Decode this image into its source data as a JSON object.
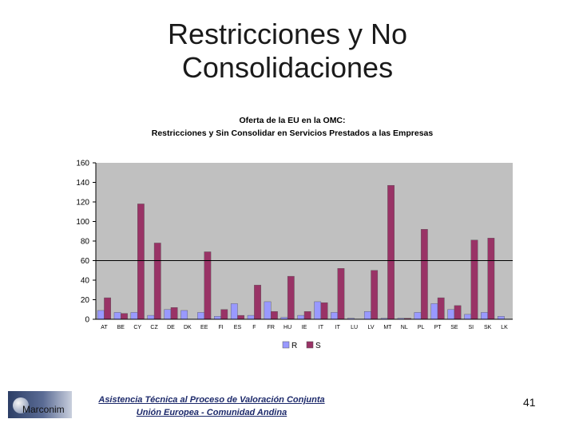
{
  "slide": {
    "title_line1": "Restricciones y No",
    "title_line2": "Consolidaciones",
    "footer_org": "Marconim",
    "footer_line1": "Asistencia Técnica al Proceso de Valoración Conjunta",
    "footer_line2": "Unión Europea - Comunidad Andina",
    "page_number": "41"
  },
  "chart_data": {
    "type": "bar",
    "title": "Oferta de la EU en la OMC:",
    "subtitle": "Restricciones y Sin Consolidar en Servicios Prestados a las Empresas",
    "xlabel": "",
    "ylabel": "",
    "ylim": [
      0,
      160
    ],
    "yticks": [
      0,
      20,
      40,
      60,
      80,
      100,
      120,
      140,
      160
    ],
    "grid": false,
    "reference_line": 60,
    "legend_position": "bottom",
    "categories": [
      "AT",
      "BE",
      "CY",
      "CZ",
      "DE",
      "DK",
      "EE",
      "FI",
      "ES",
      "F",
      "FR",
      "HU",
      "IE",
      "IT",
      "IT",
      "LU",
      "LV",
      "MT",
      "NL",
      "PL",
      "PT",
      "SE",
      "SI",
      "SK",
      "LK"
    ],
    "series": [
      {
        "name": "R",
        "color": "#9999ff",
        "values": [
          9,
          7,
          7,
          4,
          10,
          9,
          7,
          3,
          16,
          4,
          18,
          2,
          4,
          18,
          7,
          1,
          8,
          1,
          1,
          7,
          16,
          10,
          5,
          7,
          3
        ]
      },
      {
        "name": "S",
        "color": "#993366",
        "values": [
          22,
          6,
          118,
          78,
          12,
          0,
          69,
          10,
          4,
          35,
          8,
          44,
          8,
          17,
          52,
          0,
          50,
          137,
          1,
          92,
          22,
          14,
          81,
          83,
          0
        ]
      }
    ]
  }
}
